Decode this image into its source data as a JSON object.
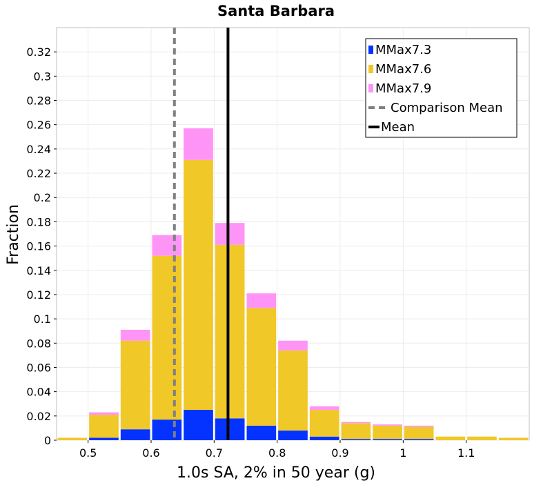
{
  "chart_data": {
    "type": "bar",
    "stacked": true,
    "title": "Santa Barbara",
    "xlabel": "1.0s SA, 2% in 50 year (g)",
    "ylabel": "Fraction",
    "xlim": [
      0.45,
      1.2
    ],
    "ylim": [
      0,
      0.34
    ],
    "bin_width": 0.05,
    "x": [
      0.475,
      0.525,
      0.575,
      0.625,
      0.675,
      0.725,
      0.775,
      0.825,
      0.875,
      0.925,
      0.975,
      1.025,
      1.075,
      1.125,
      1.175
    ],
    "xticks": [
      0.5,
      0.6,
      0.7,
      0.8,
      0.9,
      1,
      1.1
    ],
    "xtick_labels": [
      "0.5",
      "0.6",
      "0.7",
      "0.8",
      "0.9",
      "1",
      "1.1"
    ],
    "yticks": [
      0,
      0.02,
      0.04,
      0.06,
      0.08,
      0.1,
      0.12,
      0.14,
      0.16,
      0.18,
      0.2,
      0.22,
      0.24,
      0.26,
      0.28,
      0.3,
      0.32
    ],
    "ytick_labels": [
      "0",
      "0.02",
      "0.04",
      "0.06",
      "0.08",
      "0.1",
      "0.12",
      "0.14",
      "0.16",
      "0.18",
      "0.2",
      "0.22",
      "0.24",
      "0.26",
      "0.28",
      "0.3",
      "0.32"
    ],
    "series": [
      {
        "name": "MMax7.3",
        "color": "#0433ff",
        "values": [
          0.0,
          0.002,
          0.009,
          0.017,
          0.025,
          0.018,
          0.012,
          0.008,
          0.003,
          0.001,
          0.001,
          0.001,
          0.0,
          0.0,
          0.0
        ]
      },
      {
        "name": "MMax7.6",
        "color": "#f0c828",
        "values": [
          0.002,
          0.019,
          0.073,
          0.135,
          0.206,
          0.143,
          0.097,
          0.066,
          0.022,
          0.013,
          0.011,
          0.01,
          0.003,
          0.003,
          0.002
        ]
      },
      {
        "name": "MMax7.9",
        "color": "#ff94f7",
        "values": [
          0.0,
          0.002,
          0.009,
          0.017,
          0.026,
          0.018,
          0.012,
          0.008,
          0.003,
          0.001,
          0.001,
          0.001,
          0.0,
          0.0,
          0.0
        ]
      }
    ],
    "lines": [
      {
        "name": "Comparison Mean",
        "x": 0.637,
        "color": "#808080",
        "style": "dashed"
      },
      {
        "name": "Mean",
        "x": 0.722,
        "color": "#000000",
        "style": "solid"
      }
    ],
    "grid": true,
    "legend_position": "top-right"
  }
}
